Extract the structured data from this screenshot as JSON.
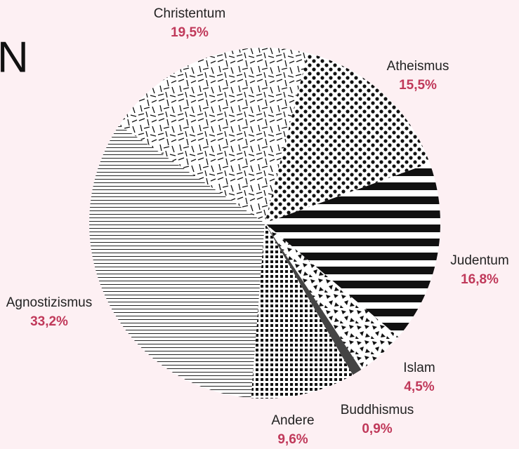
{
  "chart_data": {
    "type": "pie",
    "title": "N",
    "categories": [
      "Christentum",
      "Atheismus",
      "Judentum",
      "Islam",
      "Buddhismus",
      "Andere",
      "Agnostizismus"
    ],
    "values": [
      19.5,
      15.5,
      16.8,
      4.5,
      0.9,
      9.6,
      33.2
    ],
    "value_labels": [
      "19,5%",
      "15,5%",
      "16,8%",
      "4,5%",
      "0,9%",
      "9,6%",
      "33,2%"
    ]
  }
}
